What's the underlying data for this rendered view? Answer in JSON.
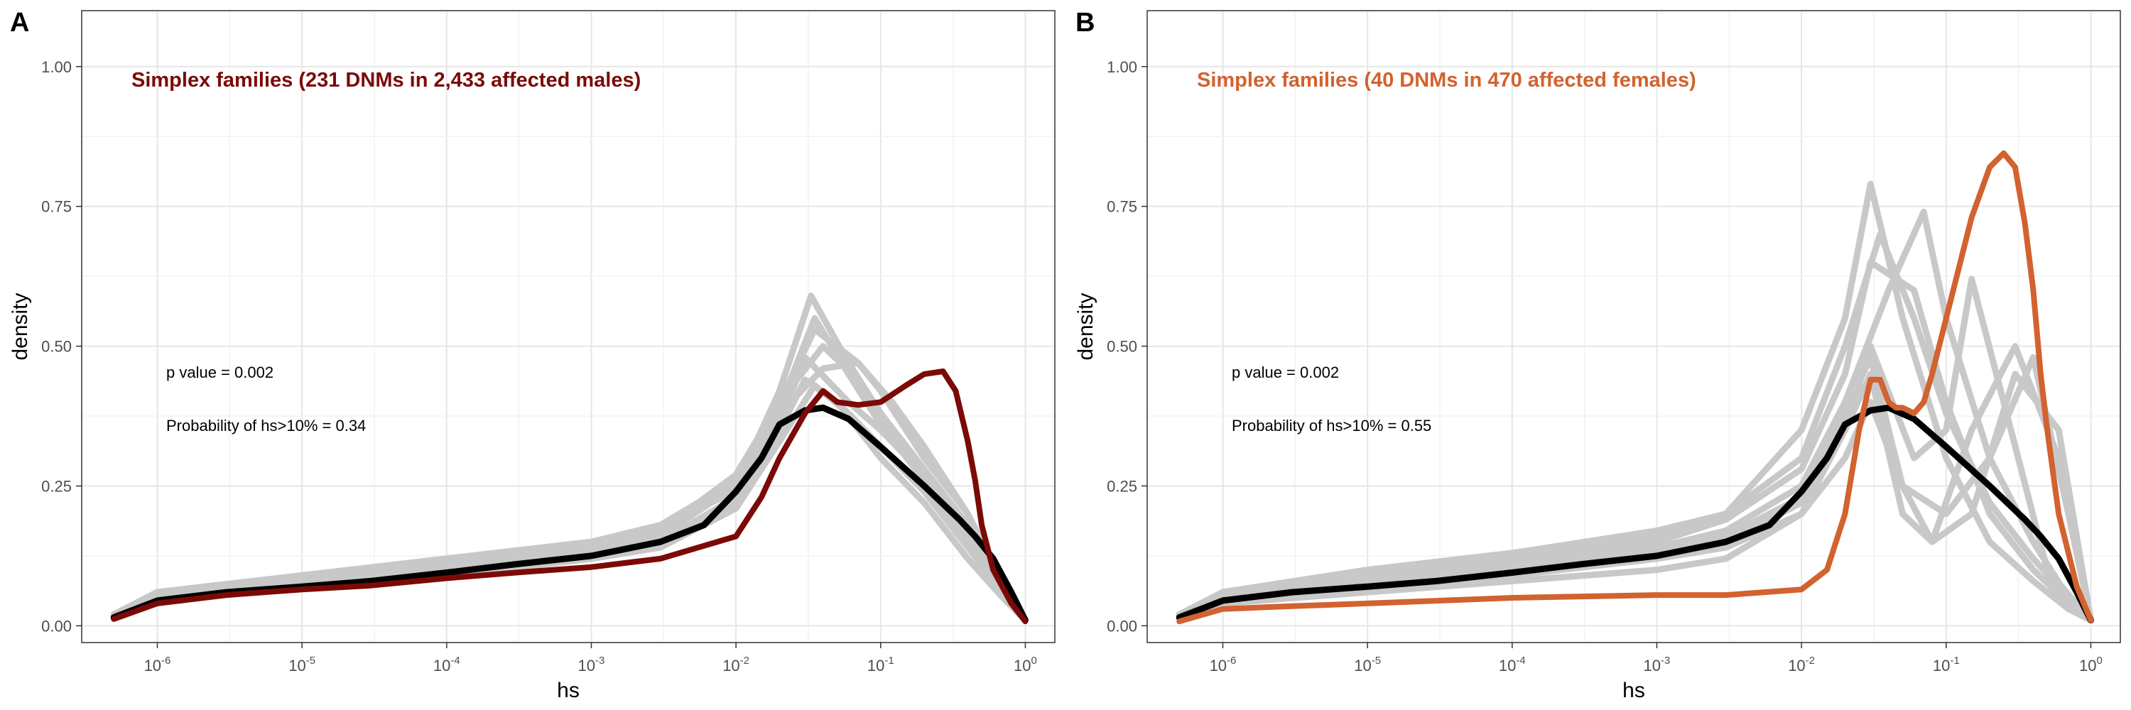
{
  "colors": {
    "male_curve": "#7b0a07",
    "female_curve": "#d2622f",
    "null_curves": "#c8c8c8",
    "mean_curve": "#000000",
    "grid_major": "#e6e6e6",
    "grid_minor": "#f2f2f2",
    "panel_border": "#333333"
  },
  "chart_data": [
    {
      "panel_tag": "A",
      "type": "line",
      "title": "Simplex families (231 DNMs in 2,433 affected males)",
      "title_color": "#7b0a07",
      "xlabel": "hs",
      "ylabel": "density",
      "x_scale": "log10",
      "xlim": [
        3e-07,
        1.6
      ],
      "ylim": [
        -0.03,
        1.1
      ],
      "x_ticks": [
        {
          "value": 1e-06,
          "base": "10",
          "exp": "-6"
        },
        {
          "value": 1e-05,
          "base": "10",
          "exp": "-5"
        },
        {
          "value": 0.0001,
          "base": "10",
          "exp": "-4"
        },
        {
          "value": 0.001,
          "base": "10",
          "exp": "-3"
        },
        {
          "value": 0.01,
          "base": "10",
          "exp": "-2"
        },
        {
          "value": 0.1,
          "base": "10",
          "exp": "-1"
        },
        {
          "value": 1,
          "base": "10",
          "exp": "0"
        }
      ],
      "y_ticks": [
        "0.00",
        "0.25",
        "0.50",
        "0.75",
        "1.00"
      ],
      "grid": true,
      "annotations": {
        "p_value": "p value = 0.002",
        "probability": "Probability of hs>10% = 0.34"
      },
      "null_curves": [
        {
          "x": [
            5e-07,
            1e-06,
            1e-05,
            0.0001,
            0.001,
            0.003,
            0.01,
            0.02,
            0.033,
            0.06,
            0.1,
            0.2,
            0.4,
            0.7,
            1.0
          ],
          "y": [
            0.02,
            0.06,
            0.08,
            0.1,
            0.13,
            0.16,
            0.25,
            0.42,
            0.59,
            0.47,
            0.38,
            0.28,
            0.18,
            0.08,
            0.01
          ]
        },
        {
          "x": [
            5e-07,
            1e-06,
            1e-05,
            0.0001,
            0.001,
            0.003,
            0.01,
            0.02,
            0.035,
            0.07,
            0.1,
            0.2,
            0.4,
            0.7,
            1.0
          ],
          "y": [
            0.02,
            0.05,
            0.07,
            0.1,
            0.12,
            0.15,
            0.23,
            0.4,
            0.53,
            0.47,
            0.42,
            0.3,
            0.2,
            0.07,
            0.01
          ]
        },
        {
          "x": [
            5e-07,
            1e-06,
            1e-05,
            0.0001,
            0.001,
            0.003,
            0.01,
            0.02,
            0.04,
            0.07,
            0.12,
            0.2,
            0.4,
            0.7,
            1.0
          ],
          "y": [
            0.02,
            0.05,
            0.08,
            0.11,
            0.14,
            0.17,
            0.26,
            0.38,
            0.46,
            0.47,
            0.4,
            0.32,
            0.2,
            0.08,
            0.01
          ]
        },
        {
          "x": [
            5e-07,
            1e-06,
            1e-05,
            0.0001,
            0.001,
            0.003,
            0.01,
            0.02,
            0.03,
            0.06,
            0.1,
            0.2,
            0.4,
            0.7,
            1.0
          ],
          "y": [
            0.02,
            0.06,
            0.09,
            0.12,
            0.15,
            0.18,
            0.24,
            0.36,
            0.48,
            0.4,
            0.35,
            0.27,
            0.16,
            0.07,
            0.01
          ]
        },
        {
          "x": [
            5e-07,
            1e-06,
            1e-05,
            0.0001,
            0.001,
            0.003,
            0.01,
            0.02,
            0.035,
            0.06,
            0.1,
            0.2,
            0.4,
            0.7,
            1.0
          ],
          "y": [
            0.02,
            0.05,
            0.07,
            0.09,
            0.12,
            0.14,
            0.21,
            0.33,
            0.43,
            0.38,
            0.32,
            0.24,
            0.14,
            0.06,
            0.01
          ]
        },
        {
          "x": [
            5e-07,
            1e-06,
            1e-05,
            0.0001,
            0.001,
            0.003,
            0.01,
            0.02,
            0.04,
            0.07,
            0.1,
            0.2,
            0.4,
            0.7,
            1.0
          ],
          "y": [
            0.02,
            0.06,
            0.09,
            0.12,
            0.15,
            0.17,
            0.27,
            0.4,
            0.5,
            0.44,
            0.37,
            0.27,
            0.15,
            0.07,
            0.01
          ]
        },
        {
          "x": [
            5e-07,
            1e-06,
            1e-05,
            0.0001,
            0.001,
            0.003,
            0.01,
            0.02,
            0.03,
            0.05,
            0.1,
            0.2,
            0.4,
            0.7,
            1.0
          ],
          "y": [
            0.02,
            0.05,
            0.08,
            0.1,
            0.13,
            0.15,
            0.22,
            0.35,
            0.44,
            0.4,
            0.3,
            0.22,
            0.12,
            0.05,
            0.01
          ]
        },
        {
          "x": [
            5e-07,
            1e-06,
            1e-05,
            0.0001,
            0.001,
            0.003,
            0.01,
            0.02,
            0.035,
            0.06,
            0.1,
            0.2,
            0.4,
            0.7,
            1.0
          ],
          "y": [
            0.02,
            0.06,
            0.09,
            0.12,
            0.15,
            0.18,
            0.26,
            0.39,
            0.55,
            0.45,
            0.36,
            0.26,
            0.15,
            0.06,
            0.01
          ]
        }
      ],
      "mean_curve": {
        "x": [
          5e-07,
          1e-06,
          3e-06,
          1e-05,
          3e-05,
          0.0001,
          0.0003,
          0.001,
          0.003,
          0.006,
          0.01,
          0.015,
          0.02,
          0.03,
          0.04,
          0.06,
          0.1,
          0.2,
          0.35,
          0.45,
          0.6,
          0.8,
          1.0
        ],
        "y": [
          0.015,
          0.045,
          0.06,
          0.07,
          0.08,
          0.095,
          0.11,
          0.125,
          0.15,
          0.18,
          0.24,
          0.3,
          0.36,
          0.385,
          0.39,
          0.37,
          0.32,
          0.25,
          0.19,
          0.16,
          0.12,
          0.06,
          0.01
        ]
      },
      "observed_curve": {
        "x": [
          5e-07,
          1e-06,
          3e-06,
          1e-05,
          3e-05,
          0.0001,
          0.0003,
          0.001,
          0.003,
          0.01,
          0.015,
          0.02,
          0.03,
          0.04,
          0.05,
          0.07,
          0.1,
          0.15,
          0.2,
          0.27,
          0.33,
          0.4,
          0.45,
          0.5,
          0.6,
          0.8,
          1.0
        ],
        "y": [
          0.012,
          0.04,
          0.055,
          0.065,
          0.072,
          0.085,
          0.095,
          0.105,
          0.12,
          0.16,
          0.23,
          0.3,
          0.38,
          0.42,
          0.4,
          0.395,
          0.4,
          0.43,
          0.45,
          0.455,
          0.42,
          0.33,
          0.26,
          0.18,
          0.1,
          0.04,
          0.008
        ]
      }
    },
    {
      "panel_tag": "B",
      "type": "line",
      "title": "Simplex families (40 DNMs in 470 affected females)",
      "title_color": "#d2622f",
      "xlabel": "hs",
      "ylabel": "density",
      "x_scale": "log10",
      "xlim": [
        3e-07,
        1.6
      ],
      "ylim": [
        -0.03,
        1.1
      ],
      "x_ticks": [
        {
          "value": 1e-06,
          "base": "10",
          "exp": "-6"
        },
        {
          "value": 1e-05,
          "base": "10",
          "exp": "-5"
        },
        {
          "value": 0.0001,
          "base": "10",
          "exp": "-4"
        },
        {
          "value": 0.001,
          "base": "10",
          "exp": "-3"
        },
        {
          "value": 0.01,
          "base": "10",
          "exp": "-2"
        },
        {
          "value": 0.1,
          "base": "10",
          "exp": "-1"
        },
        {
          "value": 1,
          "base": "10",
          "exp": "0"
        }
      ],
      "y_ticks": [
        "0.00",
        "0.25",
        "0.50",
        "0.75",
        "1.00"
      ],
      "grid": true,
      "annotations": {
        "p_value": "p value = 0.002",
        "probability": "Probability of hs>10% = 0.55"
      },
      "null_curves": [
        {
          "x": [
            5e-07,
            1e-06,
            1e-05,
            0.0001,
            0.001,
            0.003,
            0.01,
            0.02,
            0.03,
            0.05,
            0.1,
            0.2,
            0.4,
            0.7,
            1.0
          ],
          "y": [
            0.02,
            0.06,
            0.1,
            0.13,
            0.16,
            0.2,
            0.35,
            0.55,
            0.79,
            0.55,
            0.3,
            0.15,
            0.08,
            0.03,
            0.01
          ]
        },
        {
          "x": [
            5e-07,
            1e-06,
            1e-05,
            0.0001,
            0.001,
            0.003,
            0.01,
            0.02,
            0.04,
            0.07,
            0.1,
            0.2,
            0.4,
            0.7,
            1.0
          ],
          "y": [
            0.02,
            0.05,
            0.08,
            0.11,
            0.14,
            0.17,
            0.25,
            0.4,
            0.6,
            0.74,
            0.55,
            0.3,
            0.15,
            0.05,
            0.01
          ]
        },
        {
          "x": [
            5e-07,
            1e-06,
            1e-05,
            0.0001,
            0.001,
            0.003,
            0.01,
            0.02,
            0.03,
            0.06,
            0.1,
            0.15,
            0.25,
            0.5,
            1.0
          ],
          "y": [
            0.02,
            0.04,
            0.06,
            0.08,
            0.1,
            0.12,
            0.2,
            0.35,
            0.5,
            0.3,
            0.35,
            0.62,
            0.4,
            0.1,
            0.01
          ]
        },
        {
          "x": [
            5e-07,
            1e-06,
            1e-05,
            0.0001,
            0.001,
            0.003,
            0.01,
            0.02,
            0.03,
            0.05,
            0.08,
            0.15,
            0.3,
            0.6,
            1.0
          ],
          "y": [
            0.02,
            0.05,
            0.07,
            0.1,
            0.13,
            0.15,
            0.22,
            0.35,
            0.45,
            0.2,
            0.15,
            0.35,
            0.5,
            0.3,
            0.01
          ]
        },
        {
          "x": [
            5e-07,
            1e-06,
            1e-05,
            0.0001,
            0.001,
            0.003,
            0.01,
            0.02,
            0.03,
            0.06,
            0.1,
            0.2,
            0.4,
            0.7,
            1.0
          ],
          "y": [
            0.02,
            0.06,
            0.09,
            0.12,
            0.15,
            0.19,
            0.28,
            0.45,
            0.65,
            0.6,
            0.4,
            0.2,
            0.1,
            0.04,
            0.01
          ]
        },
        {
          "x": [
            5e-07,
            1e-06,
            1e-05,
            0.0001,
            0.001,
            0.003,
            0.01,
            0.02,
            0.03,
            0.05,
            0.08,
            0.15,
            0.3,
            0.6,
            1.0
          ],
          "y": [
            0.02,
            0.05,
            0.08,
            0.11,
            0.14,
            0.16,
            0.23,
            0.38,
            0.48,
            0.25,
            0.15,
            0.2,
            0.45,
            0.35,
            0.01
          ]
        },
        {
          "x": [
            5e-07,
            1e-06,
            1e-05,
            0.0001,
            0.001,
            0.003,
            0.01,
            0.02,
            0.035,
            0.06,
            0.1,
            0.2,
            0.4,
            0.7,
            1.0
          ],
          "y": [
            0.02,
            0.06,
            0.1,
            0.13,
            0.17,
            0.2,
            0.3,
            0.5,
            0.7,
            0.55,
            0.38,
            0.22,
            0.12,
            0.05,
            0.01
          ]
        },
        {
          "x": [
            5e-07,
            1e-06,
            1e-05,
            0.0001,
            0.001,
            0.003,
            0.01,
            0.02,
            0.03,
            0.05,
            0.1,
            0.2,
            0.4,
            0.7,
            1.0
          ],
          "y": [
            0.02,
            0.05,
            0.07,
            0.09,
            0.12,
            0.14,
            0.2,
            0.3,
            0.4,
            0.25,
            0.2,
            0.3,
            0.48,
            0.2,
            0.01
          ]
        }
      ],
      "mean_curve": {
        "x": [
          5e-07,
          1e-06,
          3e-06,
          1e-05,
          3e-05,
          0.0001,
          0.0003,
          0.001,
          0.003,
          0.006,
          0.01,
          0.015,
          0.02,
          0.03,
          0.04,
          0.06,
          0.1,
          0.2,
          0.35,
          0.45,
          0.6,
          0.8,
          1.0
        ],
        "y": [
          0.015,
          0.045,
          0.06,
          0.07,
          0.08,
          0.095,
          0.11,
          0.125,
          0.15,
          0.18,
          0.24,
          0.3,
          0.36,
          0.385,
          0.39,
          0.37,
          0.32,
          0.25,
          0.19,
          0.16,
          0.12,
          0.06,
          0.01
        ]
      },
      "observed_curve": {
        "x": [
          5e-07,
          1e-06,
          3e-06,
          1e-05,
          0.0001,
          0.001,
          0.003,
          0.01,
          0.015,
          0.02,
          0.025,
          0.03,
          0.035,
          0.04,
          0.045,
          0.05,
          0.06,
          0.07,
          0.08,
          0.1,
          0.15,
          0.2,
          0.25,
          0.3,
          0.35,
          0.4,
          0.45,
          0.5,
          0.6,
          0.8,
          1.0
        ],
        "y": [
          0.008,
          0.03,
          0.035,
          0.04,
          0.05,
          0.055,
          0.055,
          0.065,
          0.1,
          0.2,
          0.35,
          0.44,
          0.44,
          0.4,
          0.39,
          0.39,
          0.38,
          0.4,
          0.45,
          0.55,
          0.73,
          0.82,
          0.845,
          0.82,
          0.72,
          0.6,
          0.45,
          0.35,
          0.2,
          0.07,
          0.01
        ]
      }
    }
  ]
}
